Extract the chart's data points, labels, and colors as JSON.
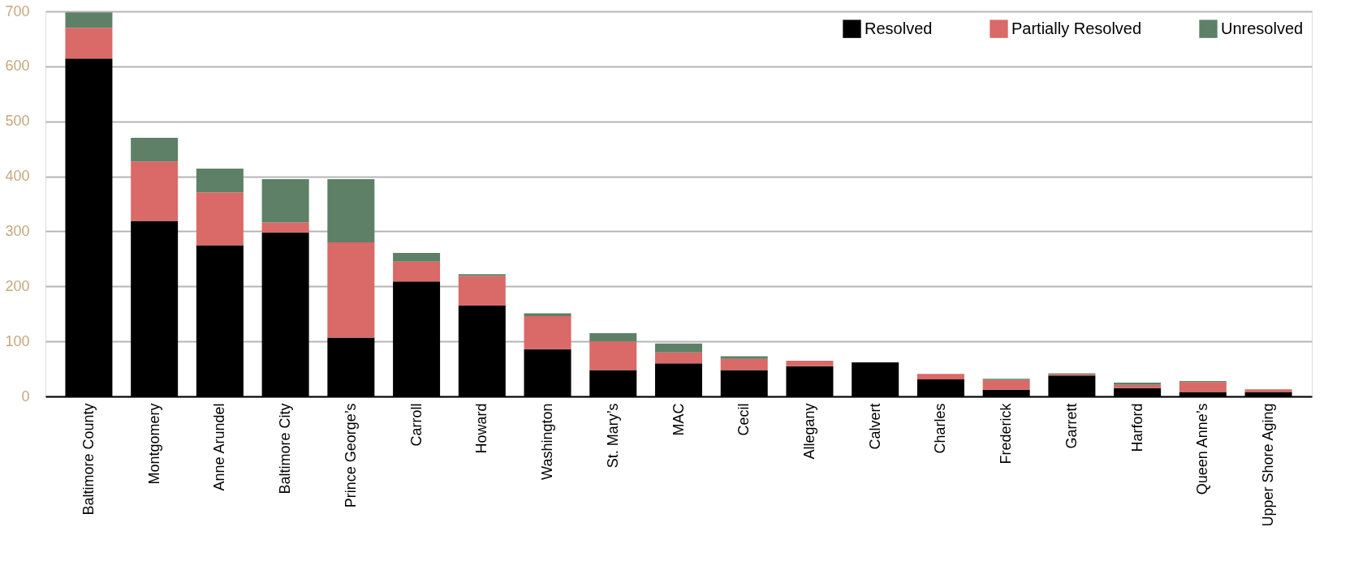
{
  "chart_data": {
    "type": "bar",
    "stacked": true,
    "categories": [
      "Baltimore County",
      "Montgomery",
      "Anne Arundel",
      "Baltimore City",
      "Prince George’s",
      "Carroll",
      "Howard",
      "Washington",
      "St. Mary’s",
      "MAC",
      "Cecil",
      "Allegany",
      "Calvert",
      "Charles",
      "Frederick",
      "Garrett",
      "Harford",
      "Queen Anne’s",
      "Upper Shore Aging"
    ],
    "series": [
      {
        "name": "Resolved",
        "color": "#000000",
        "values": [
          614,
          319,
          275,
          298,
          107,
          209,
          165,
          86,
          48,
          60,
          48,
          55,
          62,
          31,
          12,
          38,
          15,
          8,
          8
        ]
      },
      {
        "name": "Partially Resolved",
        "color": "#d96a67",
        "values": [
          56,
          108,
          96,
          18,
          173,
          36,
          54,
          60,
          52,
          20,
          20,
          10,
          0,
          10,
          18,
          2,
          6,
          18,
          5
        ]
      },
      {
        "name": "Unresolved",
        "color": "#5e8066",
        "values": [
          28,
          43,
          43,
          79,
          115,
          16,
          3,
          5,
          15,
          16,
          5,
          0,
          0,
          0,
          2,
          2,
          4,
          2,
          0
        ]
      }
    ],
    "ylim": [
      0,
      700
    ],
    "yticks": [
      0,
      100,
      200,
      300,
      400,
      500,
      600,
      700
    ],
    "grid": "y",
    "legend": "top right"
  }
}
